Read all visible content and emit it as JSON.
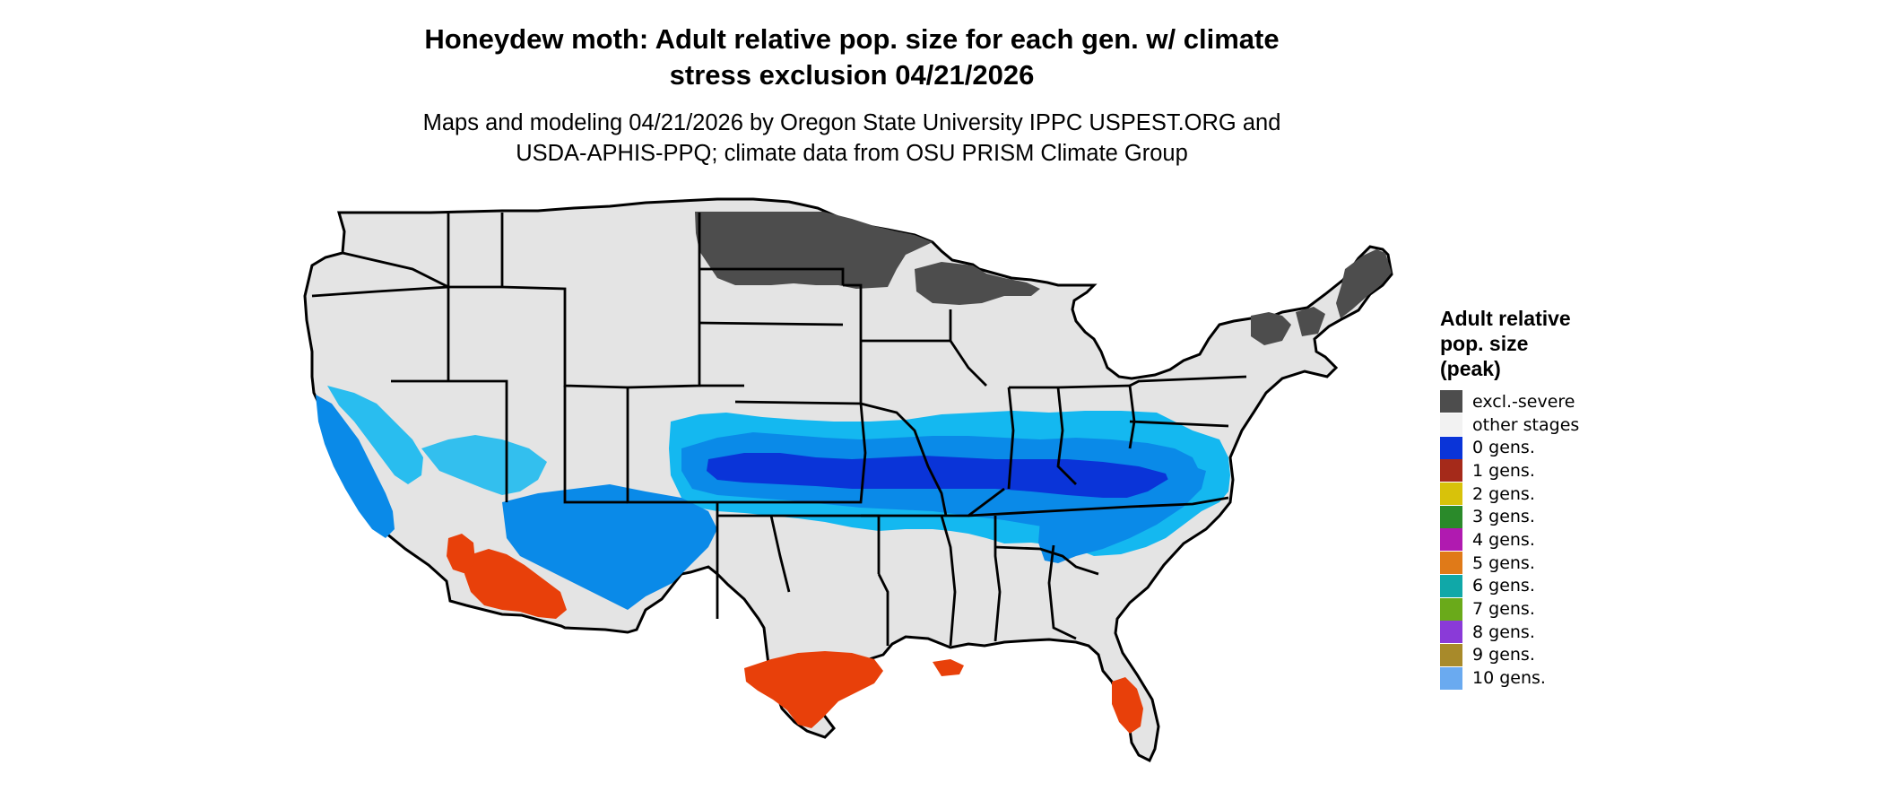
{
  "title_lines": [
    "Honeydew moth: Adult relative pop. size for each gen. w/ climate",
    "stress exclusion 04/21/2026"
  ],
  "subtitle_lines": [
    "Maps and modeling 04/21/2026 by Oregon State University IPPC USPEST.ORG and",
    "USDA-APHIS-PPQ; climate data from OSU PRISM Climate Group"
  ],
  "legend": {
    "title_lines": [
      "Adult relative",
      "pop. size",
      "(peak)"
    ],
    "items": [
      {
        "label": "excl.-severe",
        "color": "#4d4d4d"
      },
      {
        "label": "other stages",
        "color": "#f2f2f2"
      },
      {
        "label": "0 gens.",
        "color": "#0a34d8"
      },
      {
        "label": "1 gens.",
        "color": "#a52a1a"
      },
      {
        "label": "2 gens.",
        "color": "#d8c20a"
      },
      {
        "label": "3 gens.",
        "color": "#2a8a2a"
      },
      {
        "label": "4 gens.",
        "color": "#b01ab0"
      },
      {
        "label": "5 gens.",
        "color": "#e07a18"
      },
      {
        "label": "6 gens.",
        "color": "#10a8a8"
      },
      {
        "label": "7 gens.",
        "color": "#6aaa1a"
      },
      {
        "label": "8 gens.",
        "color": "#8a3ad8"
      },
      {
        "label": "9 gens.",
        "color": "#a88a2a"
      },
      {
        "label": "10 gens.",
        "color": "#6aaaf0"
      }
    ]
  },
  "map_colors": {
    "background_land": "#e4e4e4",
    "excluded": "#4d4d4d",
    "other_stages": "#f2f2f2",
    "light_blue": "#14b8f0",
    "medium_blue": "#0a8ae8",
    "dark_blue": "#0a34d8",
    "red_orange": "#e8400a",
    "border": "#000000"
  }
}
